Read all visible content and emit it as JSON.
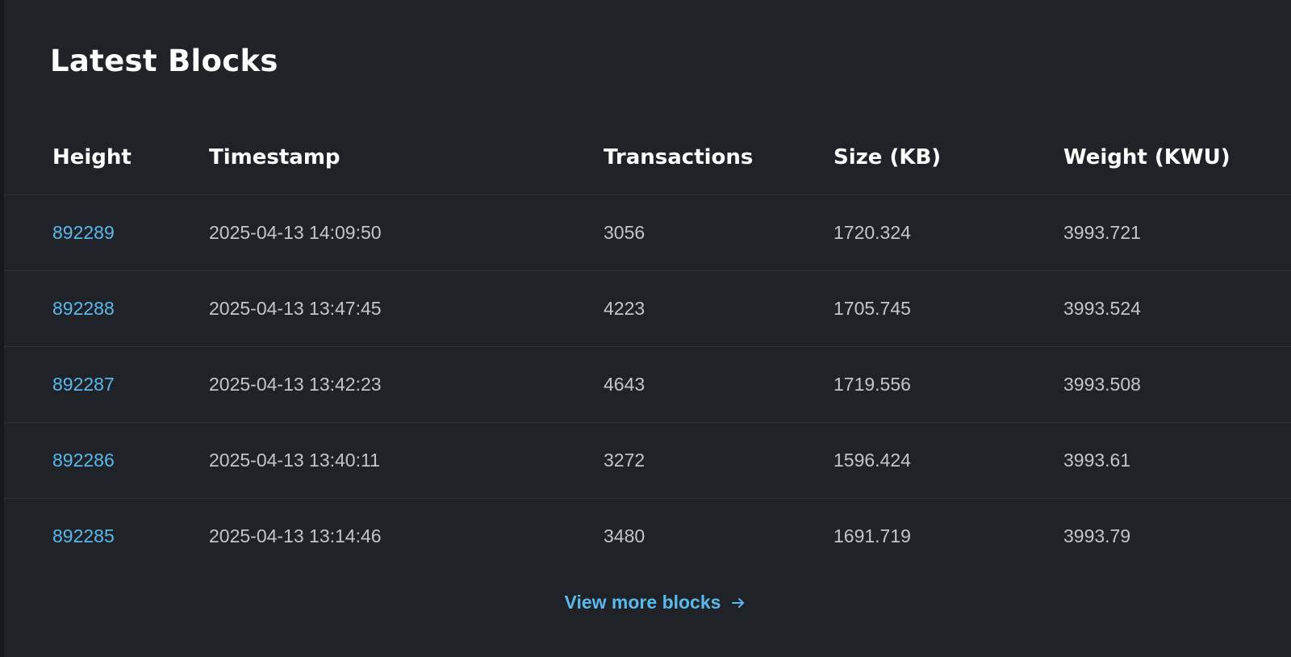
{
  "section": {
    "title": "Latest Blocks"
  },
  "table": {
    "headers": {
      "height": "Height",
      "timestamp": "Timestamp",
      "transactions": "Transactions",
      "size": "Size (KB)",
      "weight": "Weight (KWU)"
    },
    "rows": [
      {
        "height": "892289",
        "timestamp": "2025-04-13 14:09:50",
        "transactions": "3056",
        "size": "1720.324",
        "weight": "3993.721"
      },
      {
        "height": "892288",
        "timestamp": "2025-04-13 13:47:45",
        "transactions": "4223",
        "size": "1705.745",
        "weight": "3993.524"
      },
      {
        "height": "892287",
        "timestamp": "2025-04-13 13:42:23",
        "transactions": "4643",
        "size": "1719.556",
        "weight": "3993.508"
      },
      {
        "height": "892286",
        "timestamp": "2025-04-13 13:40:11",
        "transactions": "3272",
        "size": "1596.424",
        "weight": "3993.61"
      },
      {
        "height": "892285",
        "timestamp": "2025-04-13 13:14:46",
        "transactions": "3480",
        "size": "1691.719",
        "weight": "3993.79"
      }
    ]
  },
  "footer": {
    "view_more_label": "View more blocks",
    "view_more_icon": "arrow-right-icon"
  },
  "colors": {
    "background": "#1f2227",
    "link": "#5ab8ec",
    "text": "#c2c5ca",
    "heading": "#ffffff"
  }
}
